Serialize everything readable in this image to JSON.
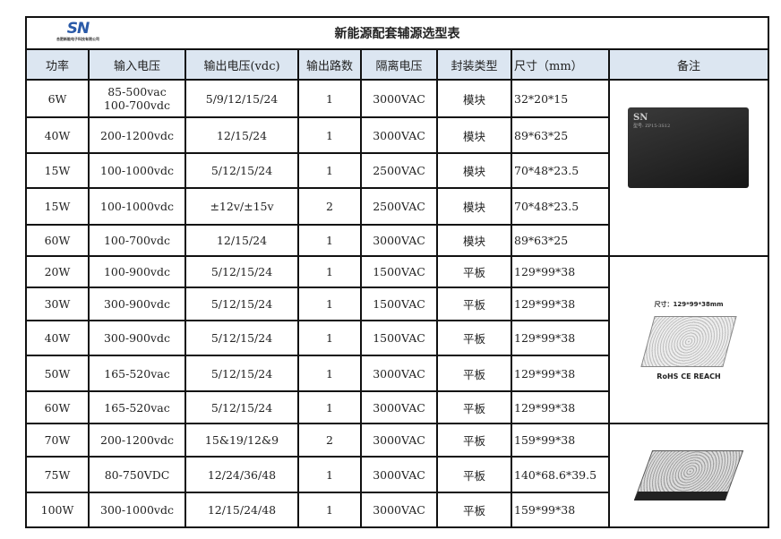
{
  "logo": {
    "text": "SN",
    "subtitle": "合肥新能电子科技有限公司"
  },
  "title": "新能源配套辅源选型表",
  "headers": [
    "功率",
    "输入电压",
    "输出电压(vdc)",
    "输出路数",
    "隔离电压",
    "封装类型",
    "尺寸（mm）",
    "备注"
  ],
  "rows": [
    {
      "power": "6W",
      "input": "85-500vac\n100-700vdc",
      "output": "5/9/12/15/24",
      "channels": "1",
      "isolation": "3000VAC",
      "package": "模块",
      "size": "32*20*15"
    },
    {
      "power": "40W",
      "input": "200-1200vdc",
      "output": "12/15/24",
      "channels": "1",
      "isolation": "3000VAC",
      "package": "模块",
      "size": "89*63*25"
    },
    {
      "power": "15W",
      "input": "100-1000vdc",
      "output": "5/12/15/24",
      "channels": "1",
      "isolation": "2500VAC",
      "package": "模块",
      "size": "70*48*23.5"
    },
    {
      "power": "15W",
      "input": "100-1000vdc",
      "output": "±12v/±15v",
      "channels": "2",
      "isolation": "2500VAC",
      "package": "模块",
      "size": "70*48*23.5"
    },
    {
      "power": "60W",
      "input": "100-700vdc",
      "output": "12/15/24",
      "channels": "1",
      "isolation": "3000VAC",
      "package": "模块",
      "size": "89*63*25"
    },
    {
      "power": "20W",
      "input": "100-900vdc",
      "output": "5/12/15/24",
      "channels": "1",
      "isolation": "1500VAC",
      "package": "平板",
      "size": "129*99*38"
    },
    {
      "power": "30W",
      "input": "300-900vdc",
      "output": "5/12/15/24",
      "channels": "1",
      "isolation": "1500VAC",
      "package": "平板",
      "size": "129*99*38"
    },
    {
      "power": "40W",
      "input": "300-900vdc",
      "output": "5/12/15/24",
      "channels": "1",
      "isolation": "1500VAC",
      "package": "平板",
      "size": "129*99*38"
    },
    {
      "power": "50W",
      "input": "165-520vac",
      "output": "5/12/15/24",
      "channels": "1",
      "isolation": "3000VAC",
      "package": "平板",
      "size": "129*99*38"
    },
    {
      "power": "60W",
      "input": "165-520vac",
      "output": "5/12/15/24",
      "channels": "1",
      "isolation": "3000VAC",
      "package": "平板",
      "size": "129*99*38"
    },
    {
      "power": "70W",
      "input": "200-1200vdc",
      "output": "15&19/12&9",
      "channels": "2",
      "isolation": "3000VAC",
      "package": "平板",
      "size": "159*99*38"
    },
    {
      "power": "75W",
      "input": "80-750VDC",
      "output": "12/24/36/48",
      "channels": "1",
      "isolation": "3000VAC",
      "package": "平板",
      "size": "140*68.6*39.5"
    },
    {
      "power": "100W",
      "input": "300-1000vdc",
      "output": "12/15/24/48",
      "channels": "1",
      "isolation": "3000VAC",
      "package": "平板",
      "size": "159*99*38"
    }
  ],
  "remarks": {
    "module_label": "型号: ZP15-3S12",
    "psu_size_caption": "尺寸：129*99*38mm",
    "certifications": "RoHS CE REACH"
  }
}
